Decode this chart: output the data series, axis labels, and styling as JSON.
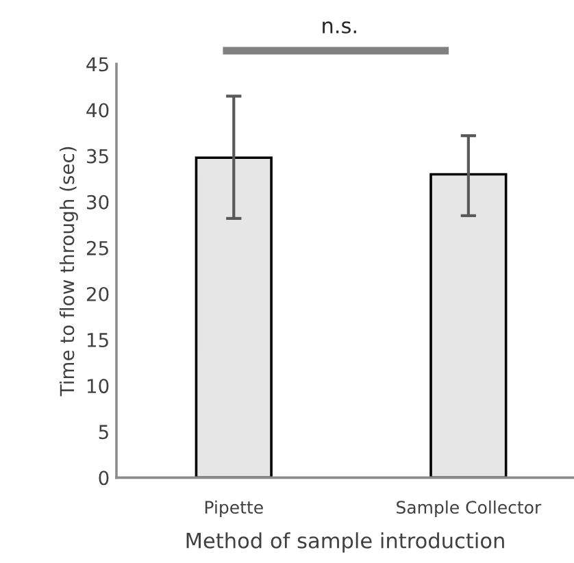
{
  "chart_data": {
    "type": "bar",
    "xlabel": "Method of sample introduction",
    "ylabel": "Time to flow through (sec)",
    "categories": [
      "Pipette",
      "Sample Collector"
    ],
    "values": [
      34.8,
      33.0
    ],
    "errors": [
      [
        28.2,
        41.5
      ],
      [
        28.5,
        37.2
      ]
    ],
    "color": "#e6e6e6",
    "ylim": [
      0,
      45
    ],
    "yticks": [
      0,
      5,
      10,
      15,
      20,
      25,
      30,
      35,
      40,
      45
    ],
    "grid": false,
    "legend": false,
    "annotations": [
      "n.s."
    ]
  }
}
